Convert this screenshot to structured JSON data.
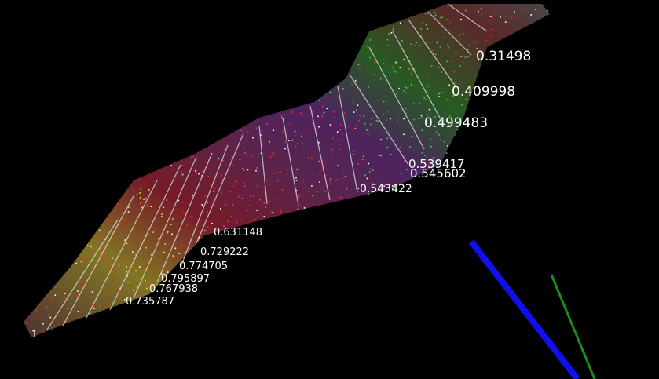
{
  "viewer": {
    "labels": [
      "0.31498",
      "0.409998",
      "0.499483",
      "0.539417",
      "0.545602",
      "0.543422",
      "0.631148",
      "0.729222",
      "0.774705",
      "0.795897",
      "0.767938",
      "0.735787",
      "1"
    ]
  }
}
